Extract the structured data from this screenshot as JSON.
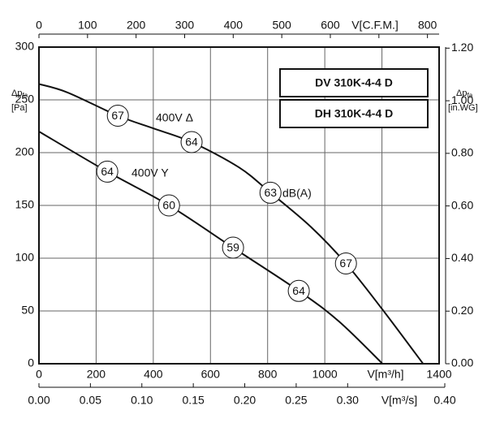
{
  "chart_data": {
    "type": "line",
    "xlim": [
      0,
      1400
    ],
    "xticks": [
      0,
      200,
      400,
      600,
      800,
      1000,
      {
        "value": 1200,
        "label": null
      },
      1400
    ],
    "x_label": "V[m³/h]",
    "ylim": [
      0,
      300
    ],
    "yticks": [
      0,
      50,
      100,
      150,
      200,
      250,
      300
    ],
    "y_label_main": "Δp",
    "y_label_sub": "fa",
    "y_unit": "[Pa]",
    "y2lim": [
      0,
      1.204
    ],
    "y2ticks": [
      {
        "value": 0,
        "label": "0.00"
      },
      {
        "value": 0.2,
        "label": "0.20"
      },
      {
        "value": 0.4,
        "label": "0.40"
      },
      {
        "value": 0.6,
        "label": "0.60"
      },
      {
        "value": 0.8,
        "label": "0.80"
      },
      {
        "value": 1.0,
        "label": "1.00"
      },
      {
        "value": 1.2,
        "label": "1.20"
      }
    ],
    "y2_label_main": "Δp",
    "y2_label_sub": "fa",
    "y2_unit": "[in.WG]",
    "x2lim": [
      0,
      824
    ],
    "x2ticks": [
      0,
      100,
      200,
      300,
      400,
      500,
      600,
      {
        "value": 700,
        "label": null
      },
      800
    ],
    "x2_label": "V[C.F.M.]",
    "x3lim": [
      0,
      0.3889
    ],
    "x3ticks": [
      {
        "value": 0,
        "label": "0.00"
      },
      {
        "value": 0.05,
        "label": "0.05"
      },
      {
        "value": 0.1,
        "label": "0.10"
      },
      {
        "value": 0.15,
        "label": "0.15"
      },
      {
        "value": 0.2,
        "label": "0.20"
      },
      {
        "value": 0.25,
        "label": "0.25"
      },
      {
        "value": 0.3,
        "label": "0.30"
      },
      {
        "value": 0.4,
        "label": "0.40"
      }
    ],
    "x3_label": "V[m³/s]",
    "grid": true,
    "models": [
      "DV 310K-4-4 D",
      "DH 310K-4-4 D"
    ],
    "marker_unit": "dB(A)",
    "series": [
      {
        "name": "400V Δ",
        "color": "#111111",
        "x": [
          0,
          100,
          276,
          400,
          534,
          700,
          810,
          950,
          1074,
          1200,
          1344
        ],
        "values": [
          265,
          257,
          235,
          223,
          210,
          186,
          162,
          130,
          95,
          52,
          0
        ],
        "markers": [
          {
            "x": 276,
            "y": 235,
            "db": 67
          },
          {
            "x": 534,
            "y": 210,
            "db": 64
          },
          {
            "x": 810,
            "y": 162,
            "db": 63
          },
          {
            "x": 1074,
            "y": 95,
            "db": 67
          }
        ]
      },
      {
        "name": "400V Y",
        "color": "#111111",
        "x": [
          0,
          239,
          455,
          679,
          909,
          1050,
          1202
        ],
        "values": [
          220,
          182,
          150,
          110,
          69,
          40,
          0
        ],
        "markers": [
          {
            "x": 239,
            "y": 182,
            "db": 64
          },
          {
            "x": 455,
            "y": 150,
            "db": 60
          },
          {
            "x": 679,
            "y": 110,
            "db": 59
          },
          {
            "x": 909,
            "y": 69,
            "db": 64
          }
        ]
      }
    ]
  }
}
